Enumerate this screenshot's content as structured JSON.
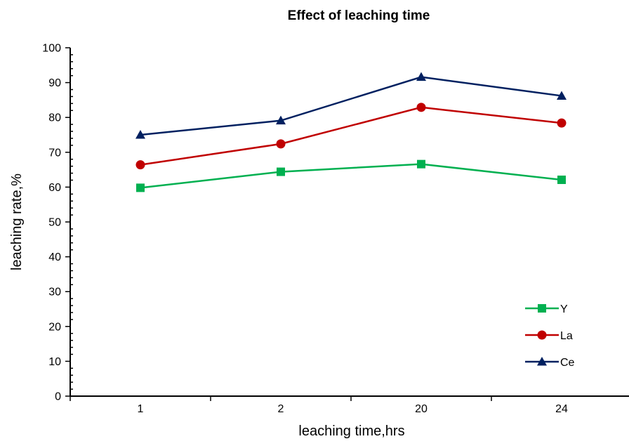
{
  "chart_data": {
    "type": "line",
    "title": "Effect of leaching time",
    "xlabel": "leaching time,hrs",
    "ylabel": "leaching rate,%",
    "categories": [
      "1",
      "2",
      "20",
      "24"
    ],
    "ylim": [
      0,
      100
    ],
    "yticks": [
      0,
      10,
      20,
      30,
      40,
      50,
      60,
      70,
      80,
      90,
      100
    ],
    "grid": false,
    "legend_position": "bottom-right",
    "series": [
      {
        "name": "Y",
        "color": "#00b050",
        "marker": "square",
        "values": [
          59.8,
          64.4,
          66.6,
          62.1
        ]
      },
      {
        "name": "La",
        "color": "#c00000",
        "marker": "circle",
        "values": [
          66.4,
          72.4,
          82.9,
          78.4
        ]
      },
      {
        "name": "Ce",
        "color": "#002060",
        "marker": "triangle",
        "values": [
          75.0,
          79.1,
          91.6,
          86.2
        ]
      }
    ]
  }
}
